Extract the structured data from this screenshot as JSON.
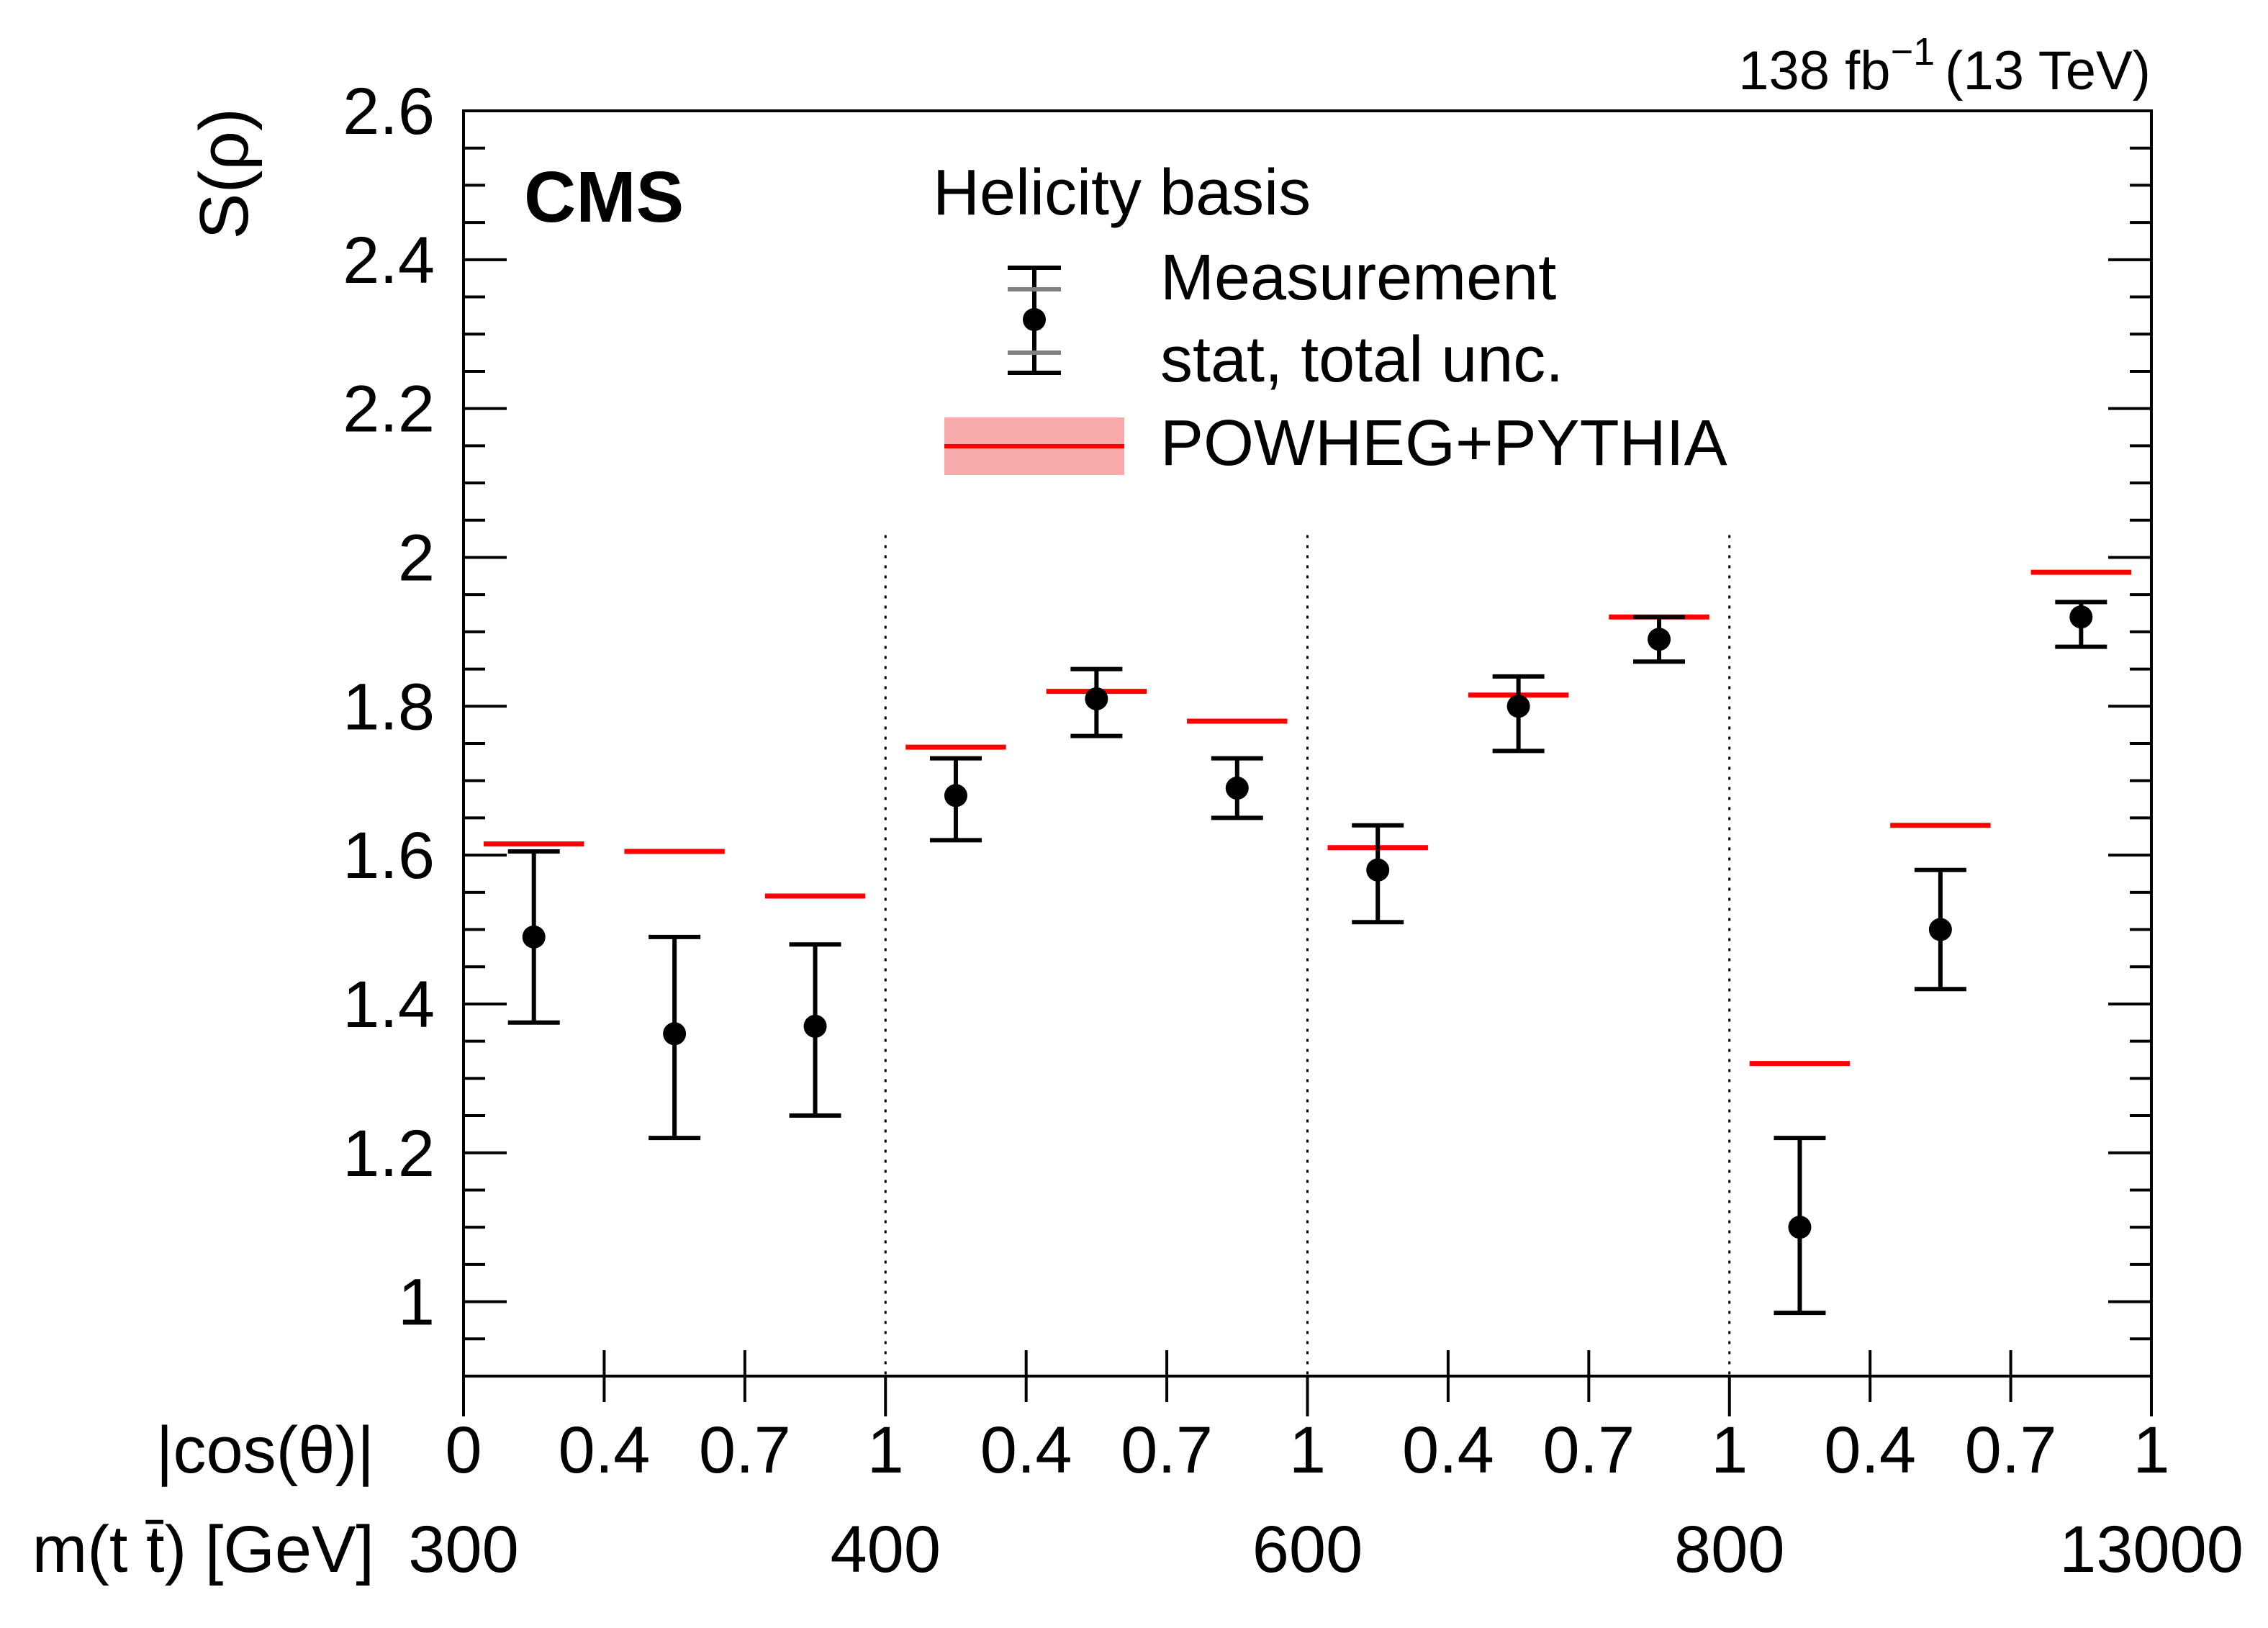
{
  "lumi": {
    "prefix": "138 fb",
    "exponent": "−1",
    "energy": "(13 TeV)"
  },
  "experiment": "CMS",
  "colors": {
    "measurement": "#000000",
    "prediction": "#ff0000",
    "band": "#f8aaaa",
    "stat": "#808080"
  },
  "legend": {
    "title": "Helicity basis",
    "entries": [
      {
        "label": "Measurement",
        "icon": "errorbar-icon"
      },
      {
        "label": "stat, total unc.",
        "icon": ""
      },
      {
        "label": "POWHEG+PYTHIA",
        "icon": "band-line-icon"
      }
    ]
  },
  "chart_data": {
    "type": "scatter",
    "title": "",
    "ylabel": "S(ρ)",
    "ylim": [
      0.9,
      2.6
    ],
    "yticks": [
      {
        "v": 1,
        "label": "1"
      },
      {
        "v": 1.2,
        "label": "1.2"
      },
      {
        "v": 1.4,
        "label": "1.4"
      },
      {
        "v": 1.6,
        "label": "1.6"
      },
      {
        "v": 1.8,
        "label": "1.8"
      },
      {
        "v": 2.0,
        "label": "2"
      },
      {
        "v": 2.2,
        "label": "2.2"
      },
      {
        "v": 2.4,
        "label": "2.4"
      },
      {
        "v": 2.6,
        "label": "2.6"
      }
    ],
    "xlabel_rows": [
      "|cos(θ)|",
      "m(t t̄) [GeV]"
    ],
    "x_cos_labels": [
      "0",
      "0.4",
      "0.7",
      "1",
      "0.4",
      "0.7",
      "1",
      "0.4",
      "0.7",
      "1",
      "0.4",
      "0.7",
      "1"
    ],
    "x_mass_labels": [
      "300",
      "400",
      "600",
      "800",
      "13000"
    ],
    "bin_dividers": [
      3,
      6,
      9
    ],
    "series": [
      {
        "name": "Measurement",
        "values": [
          1.49,
          1.36,
          1.37,
          1.68,
          1.81,
          1.69,
          1.58,
          1.8,
          1.89,
          1.1,
          1.5,
          1.92
        ],
        "total_up": [
          1.605,
          1.49,
          1.48,
          1.73,
          1.85,
          1.73,
          1.64,
          1.84,
          1.92,
          1.22,
          1.58,
          1.94
        ],
        "total_down": [
          1.375,
          1.22,
          1.25,
          1.62,
          1.76,
          1.65,
          1.51,
          1.74,
          1.86,
          0.985,
          1.42,
          1.88
        ]
      },
      {
        "name": "POWHEG+PYTHIA",
        "values": [
          1.615,
          1.605,
          1.545,
          1.745,
          1.82,
          1.78,
          1.61,
          1.815,
          1.92,
          1.32,
          1.64,
          1.98
        ]
      }
    ]
  }
}
